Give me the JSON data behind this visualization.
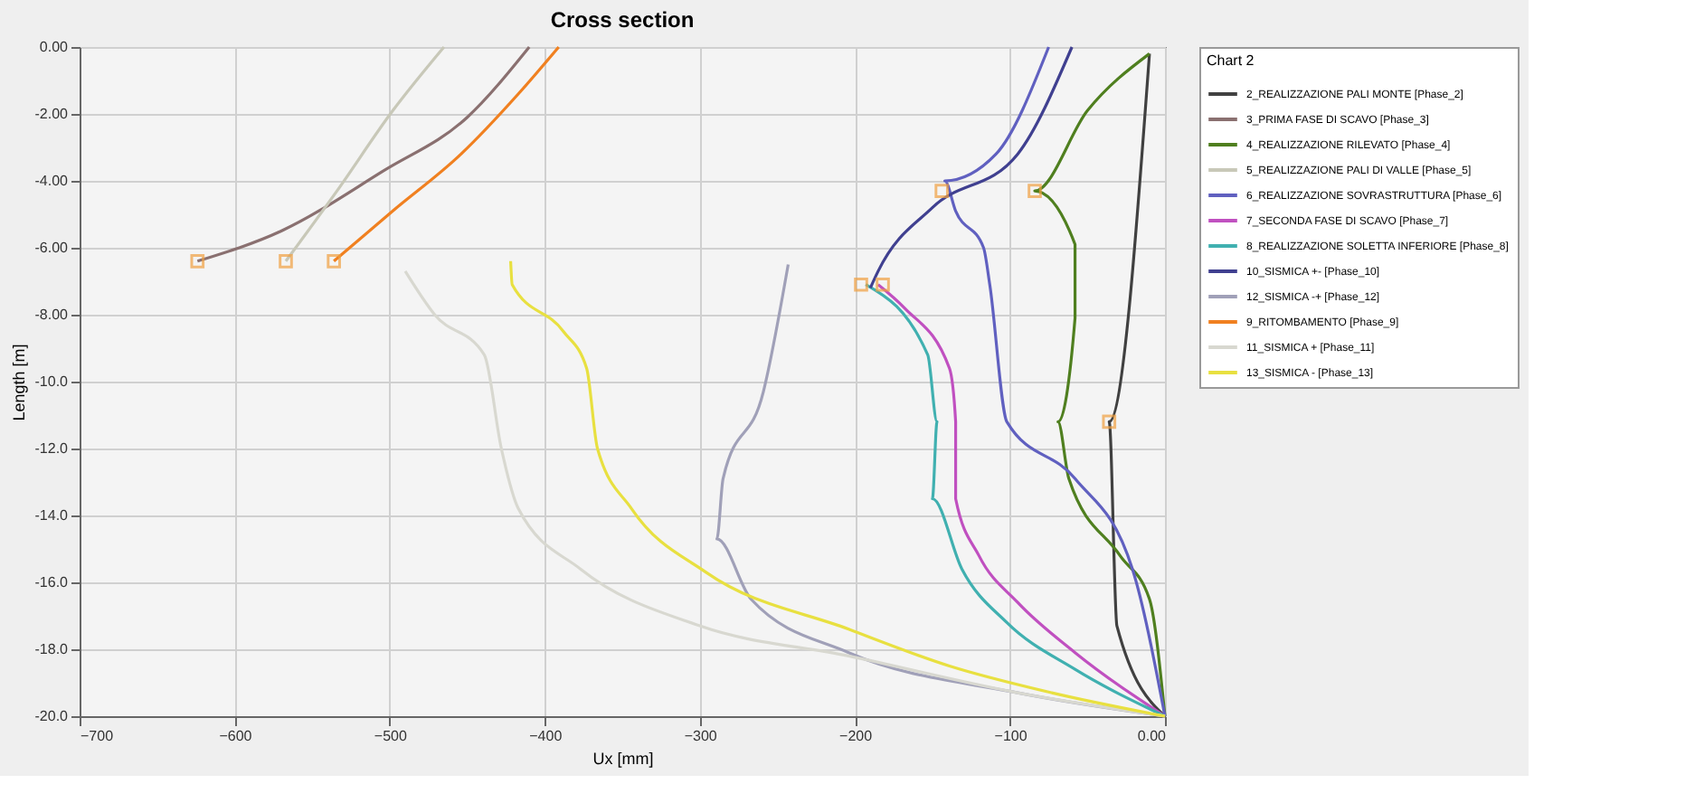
{
  "chart_data": {
    "type": "line",
    "title": "Cross section",
    "xlabel": "Ux [mm]",
    "ylabel": "Length [m]",
    "legend_title": "Chart 2",
    "legend": "right",
    "grid": true,
    "xlim": [
      -700,
      0
    ],
    "xticks": [
      -700,
      -600,
      -500,
      -400,
      -300,
      -200,
      -100,
      {
        "value": 0,
        "label": "0.00"
      }
    ],
    "ylim": [
      -20,
      0
    ],
    "yticks": [
      {
        "value": 0,
        "label": "0.00"
      },
      {
        "value": -2,
        "label": "-2.00"
      },
      {
        "value": -4,
        "label": "-4.00"
      },
      {
        "value": -6,
        "label": "-6.00"
      },
      {
        "value": -8,
        "label": "-8.00"
      },
      {
        "value": -10,
        "label": "-10.0"
      },
      {
        "value": -12,
        "label": "-12.0"
      },
      {
        "value": -14,
        "label": "-14.0"
      },
      {
        "value": -16,
        "label": "-16.0"
      },
      {
        "value": -18,
        "label": "-18.0"
      },
      {
        "value": -20,
        "label": "-20.0"
      }
    ],
    "series": [
      {
        "name": "2_REALIZZAZIONE PALI MONTE [Phase_2]",
        "color": "#404040",
        "x": [
          -10,
          -36,
          -31,
          0
        ],
        "values": [
          -0.2,
          -11.2,
          -17.3,
          -20
        ]
      },
      {
        "name": "3_PRIMA FASE DI SCAVO [Phase_3]",
        "color": "#8a7070",
        "x": [
          -624,
          -570,
          -504,
          -450,
          -410
        ],
        "values": [
          -6.4,
          -5.5,
          -3.7,
          -2.1,
          0
        ]
      },
      {
        "name": "4_REALIZZAZIONE RILEVATO [Phase_4]",
        "color": "#4f7f1f",
        "x": [
          -10,
          -50,
          -84,
          -58,
          -58,
          -69,
          -62,
          -29,
          -10,
          0
        ],
        "values": [
          -0.2,
          -1.9,
          -4.3,
          -5.9,
          -8.1,
          -11.2,
          -12.9,
          -15.2,
          -16.5,
          -20
        ]
      },
      {
        "name": "5_REALIZZAZIONE PALI DI VALLE [Phase_5]",
        "color": "#c8c8b8",
        "x": [
          -567,
          -534,
          -498,
          -465
        ],
        "values": [
          -6.4,
          -4.3,
          -1.9,
          0
        ]
      },
      {
        "name": "6_REALIZZAZIONE SOVRASTRUTTURA [Phase_6]",
        "color": "#6060c0",
        "x": [
          -75,
          -109,
          -142,
          -135,
          -117,
          -113,
          -102,
          -58,
          -21,
          0
        ],
        "values": [
          0,
          -3.2,
          -4,
          -4.9,
          -6,
          -7.1,
          -11.2,
          -12.9,
          -15.6,
          -20
        ]
      },
      {
        "name": "7_SECONDA FASE DI SCAVO [Phase_7]",
        "color": "#c050c0",
        "x": [
          -185,
          -168,
          -139,
          -135,
          -135,
          -120,
          -95,
          -58,
          0
        ],
        "values": [
          -7.1,
          -7.8,
          -9.6,
          -11.2,
          -13.5,
          -15.2,
          -16.6,
          -18.1,
          -20
        ]
      },
      {
        "name": "8_REALIZZAZIONE SOLETTA INFERIORE [Phase_8]",
        "color": "#40b0b0",
        "x": [
          -193,
          -153,
          -147,
          -150,
          -131,
          -102,
          -58,
          0
        ],
        "values": [
          -7.1,
          -9.2,
          -11.2,
          -13.5,
          -15.6,
          -17.2,
          -18.6,
          -20
        ]
      },
      {
        "name": "10_SISMICA +- [Phase_10]",
        "color": "#404090",
        "x": [
          -60,
          -95,
          -150,
          -185,
          -190
        ],
        "values": [
          0,
          -3.2,
          -4.8,
          -6.7,
          -7.2
        ]
      },
      {
        "name": "12_SISMICA -+ [Phase_12]",
        "color": "#a0a0b8",
        "x": [
          -243,
          -259,
          -285,
          -289,
          -267,
          -204,
          -95,
          0
        ],
        "values": [
          -6.5,
          -10.3,
          -12.9,
          -14.7,
          -16.5,
          -18.1,
          -19.3,
          -20
        ]
      },
      {
        "name": "9_RITOMBAMENTO [Phase_9]",
        "color": "#f08020",
        "x": [
          -536,
          -498,
          -454,
          -417,
          -391
        ],
        "values": [
          -6.4,
          -4.9,
          -3.2,
          -1.4,
          0
        ]
      },
      {
        "name": "11_SISMICA + [Phase_11]",
        "color": "#d8d8d0",
        "x": [
          -490,
          -471,
          -439,
          -428,
          -417,
          -377,
          -300,
          -204,
          -95,
          0
        ],
        "values": [
          -6.7,
          -8,
          -9.2,
          -12,
          -13.8,
          -15.6,
          -17.3,
          -18.2,
          -19.3,
          -20
        ]
      },
      {
        "name": "13_SISMICA - [Phase_13]",
        "color": "#e8e040",
        "x": [
          -422,
          -421,
          -388,
          -373,
          -366,
          -344,
          -296,
          -204,
          -139,
          -73,
          0
        ],
        "values": [
          -6.4,
          -7.1,
          -8.5,
          -9.6,
          -12,
          -13.8,
          -15.7,
          -17.4,
          -18.5,
          -19.3,
          -20
        ]
      },
      {
        "type": "scatter",
        "marker": "square",
        "color": "#f0a040",
        "x": [
          -624,
          -567,
          -536,
          -144,
          -84,
          -196,
          -182,
          -36
        ],
        "values": [
          -6.4,
          -6.4,
          -6.4,
          -4.3,
          -4.3,
          -7.1,
          -7.1,
          -11.2
        ]
      }
    ]
  }
}
